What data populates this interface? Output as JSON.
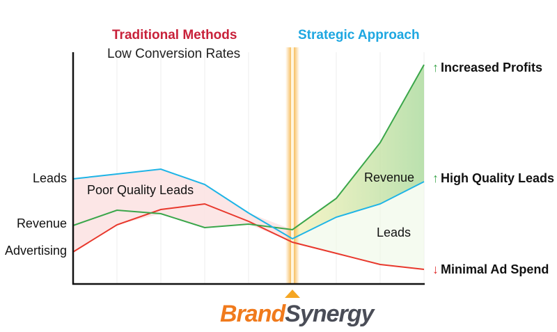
{
  "headers": {
    "traditional": "Traditional Methods",
    "strategic": "Strategic Approach",
    "subtitle": "Low Conversion Rates"
  },
  "left_labels": {
    "leads": "Leads",
    "revenue": "Revenue",
    "advertising": "Advertising"
  },
  "inner_labels": {
    "poor_quality": "Poor Quality Leads",
    "revenue": "Revenue",
    "leads": "Leads"
  },
  "right_labels": [
    {
      "text": "Increased Profits",
      "arrow": "up",
      "arrow_color": "#3aa64a"
    },
    {
      "text": "High Quality Leads",
      "arrow": "up",
      "arrow_color": "#3aa64a"
    },
    {
      "text": "Minimal Ad Spend",
      "arrow": "down",
      "arrow_color": "#e02a2a"
    }
  ],
  "series_colors": {
    "leads": "#1eb4e6",
    "revenue": "#3aa64a",
    "advertising": "#e8382c",
    "divider": "#f5a623"
  },
  "logo": {
    "part1": "Brand",
    "part2": "Synergy"
  }
}
